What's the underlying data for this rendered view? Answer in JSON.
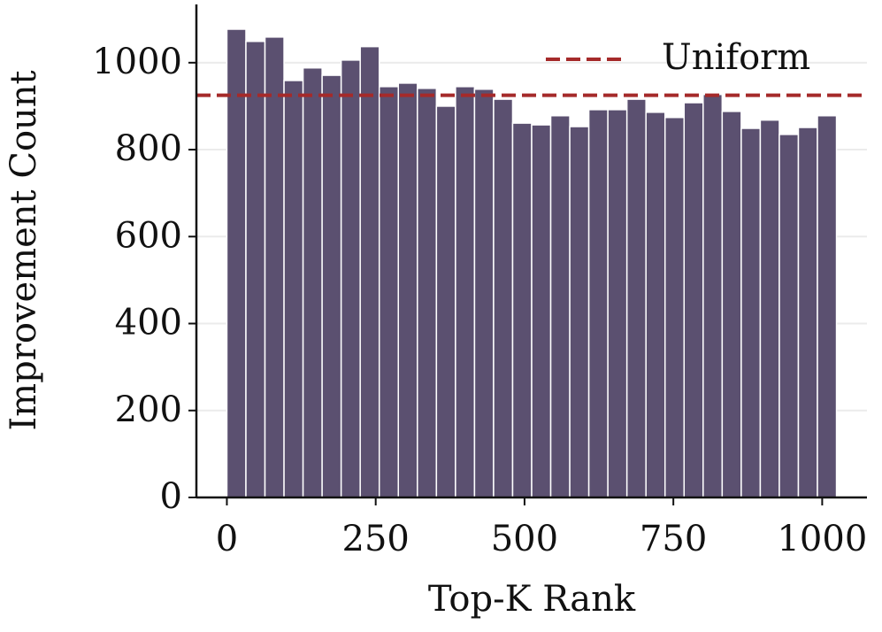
{
  "chart_data": {
    "type": "histogram",
    "x_label": "Top-K Rank",
    "y_label": "Improvement Count",
    "bins": [
      0,
      32,
      64,
      96,
      128,
      160,
      192,
      224,
      256,
      288,
      320,
      352,
      384,
      416,
      448,
      480,
      512,
      544,
      576,
      608,
      640,
      672,
      704,
      736,
      768,
      800,
      832,
      864,
      896,
      928,
      960,
      992,
      1024
    ],
    "counts": [
      1077,
      1049,
      1059,
      959,
      988,
      971,
      1006,
      1037,
      945,
      953,
      941,
      900,
      945,
      939,
      916,
      861,
      857,
      878,
      853,
      892,
      892,
      916,
      886,
      874,
      908,
      927,
      888,
      849,
      868,
      835,
      851,
      878
    ],
    "color": "#5b5070",
    "reference_line": {
      "value": 925,
      "label": "Uniform",
      "color": "#a52a2a",
      "style": "dashed"
    },
    "legend": "upper right",
    "xlim": [
      -51.2,
      1075.2
    ],
    "xticks": [
      0,
      250,
      500,
      750,
      1000
    ],
    "ylim": [
      0,
      1134
    ],
    "yticks": [
      0,
      200,
      400,
      600,
      800,
      1000
    ],
    "grid": "y"
  }
}
